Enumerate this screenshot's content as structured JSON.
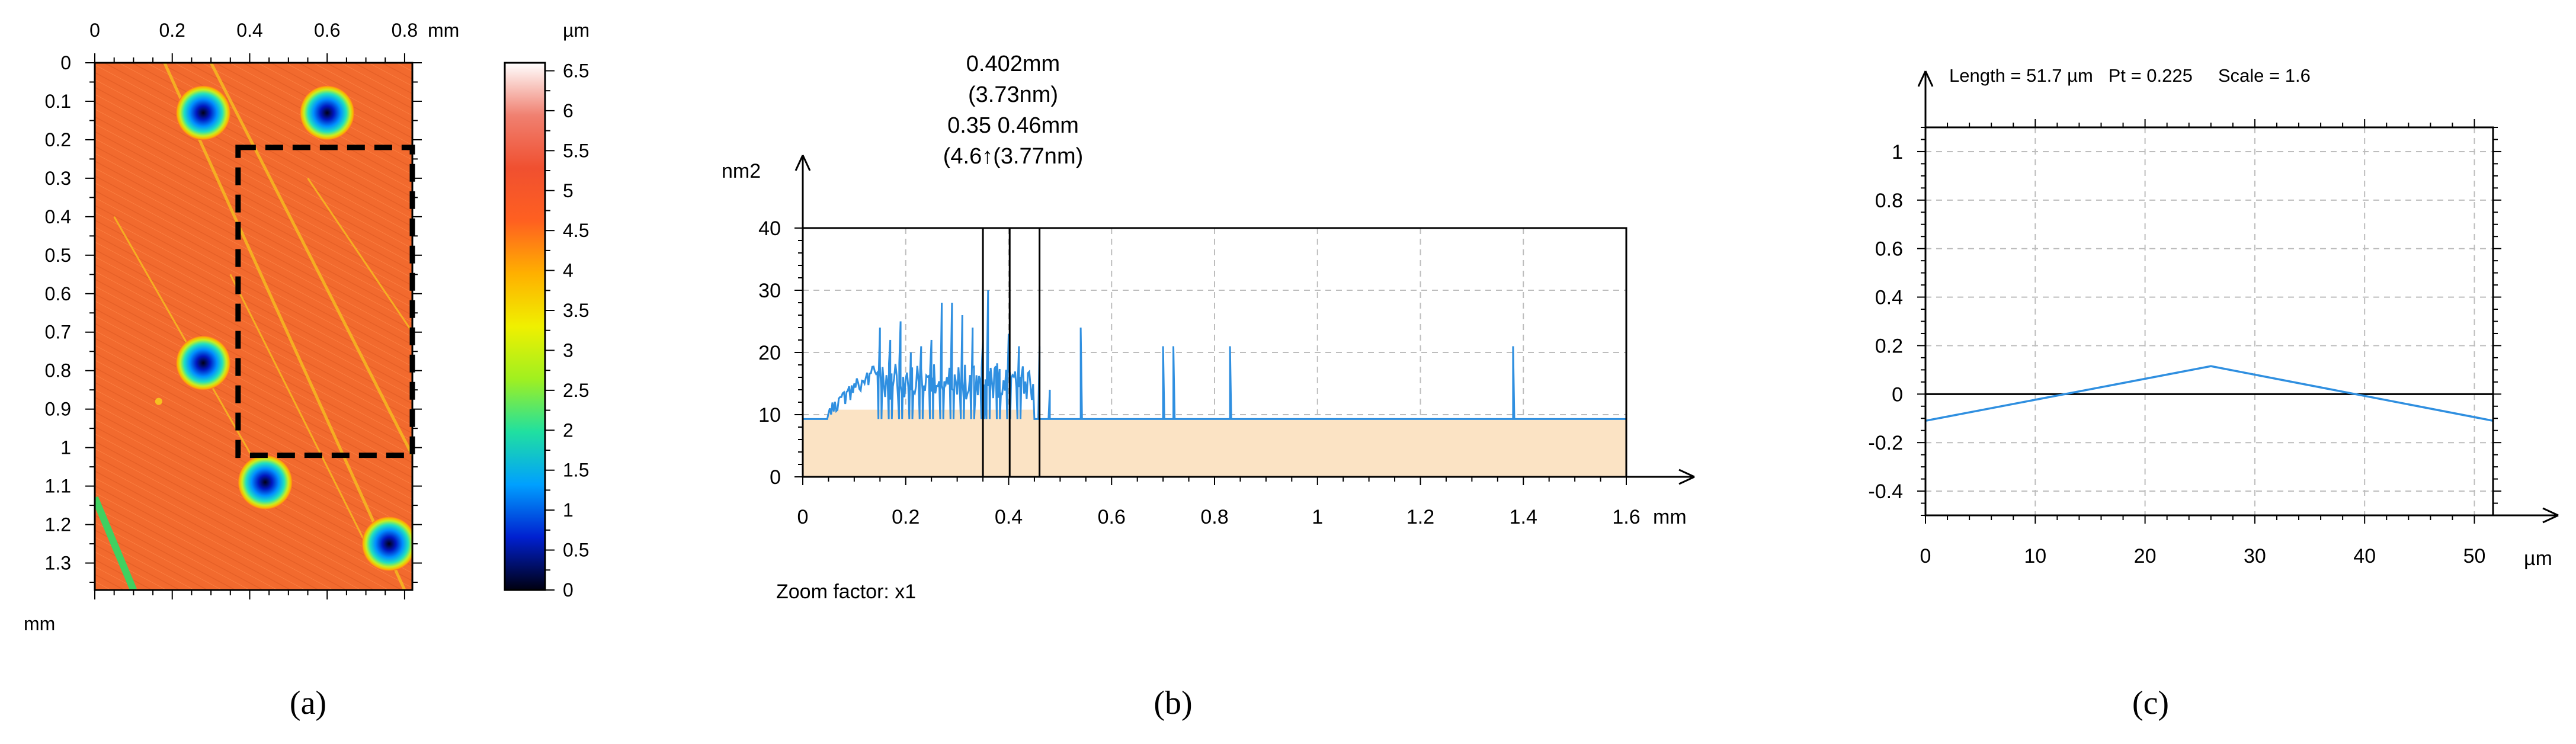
{
  "chart_data": [
    {
      "id": "a",
      "type": "heatmap",
      "caption": "(a)",
      "x_unit": "mm",
      "y_unit": "mm",
      "x_ticks": [
        "0",
        "0.2",
        "0.4",
        "0.6",
        "0.8"
      ],
      "y_ticks": [
        "0",
        "0.1",
        "0.2",
        "0.3",
        "0.4",
        "0.5",
        "0.6",
        "0.7",
        "0.8",
        "0.9",
        "1",
        "1.1",
        "1.2",
        "1.3"
      ],
      "xlim": [
        0,
        0.82
      ],
      "ylim": [
        0,
        1.37
      ],
      "colorbar": {
        "unit": "µm",
        "ticks": [
          "6.5",
          "6",
          "5.5",
          "5",
          "4.5",
          "4",
          "3.5",
          "3",
          "2.5",
          "2",
          "1.5",
          "1",
          "0.5",
          "0"
        ],
        "range": [
          0,
          6.6
        ],
        "colors": [
          "#000010",
          "#0020d0",
          "#00a0ff",
          "#20e0a0",
          "#a0f020",
          "#f0f000",
          "#ffb000",
          "#ff6020",
          "#f05030",
          "#f08070",
          "#ffffff"
        ]
      },
      "base_color": "#f26a2e",
      "scratch_color": "#f6c020",
      "pits": [
        {
          "x": 0.28,
          "y": 0.13
        },
        {
          "x": 0.6,
          "y": 0.13
        },
        {
          "x": 0.28,
          "y": 0.78
        },
        {
          "x": 0.44,
          "y": 1.09
        },
        {
          "x": 0.76,
          "y": 1.25
        }
      ],
      "selection": {
        "x0": 0.37,
        "x1": 0.82,
        "y0": 0.22,
        "y1": 1.02
      }
    },
    {
      "id": "b",
      "type": "area",
      "caption": "(b)",
      "ylabel": "nm2",
      "x_unit": "mm",
      "x_ticks": [
        "0",
        "0.2",
        "0.4",
        "0.6",
        "0.8",
        "1",
        "1.2",
        "1.4",
        "1.6"
      ],
      "y_ticks": [
        "0",
        "10",
        "20",
        "30",
        "40"
      ],
      "xlim": [
        0,
        1.6
      ],
      "ylim": [
        0,
        40
      ],
      "baseline": 9.3,
      "fill_color": "#fbe3c4",
      "line_color": "#2f8fe0",
      "spikes": [
        {
          "x": 0.15,
          "y": 24
        },
        {
          "x": 0.17,
          "y": 22
        },
        {
          "x": 0.19,
          "y": 25
        },
        {
          "x": 0.21,
          "y": 20
        },
        {
          "x": 0.23,
          "y": 21
        },
        {
          "x": 0.25,
          "y": 22
        },
        {
          "x": 0.27,
          "y": 28
        },
        {
          "x": 0.29,
          "y": 28
        },
        {
          "x": 0.31,
          "y": 26
        },
        {
          "x": 0.33,
          "y": 24
        },
        {
          "x": 0.35,
          "y": 22
        },
        {
          "x": 0.36,
          "y": 30
        },
        {
          "x": 0.38,
          "y": 15
        },
        {
          "x": 0.4,
          "y": 23
        },
        {
          "x": 0.42,
          "y": 21
        },
        {
          "x": 0.46,
          "y": 21
        },
        {
          "x": 0.48,
          "y": 14
        },
        {
          "x": 0.54,
          "y": 24
        },
        {
          "x": 0.7,
          "y": 21
        },
        {
          "x": 0.72,
          "y": 21
        },
        {
          "x": 0.83,
          "y": 21
        },
        {
          "x": 1.38,
          "y": 21
        }
      ],
      "markers": [
        0.35,
        0.402,
        0.46
      ],
      "annotations": [
        "0.402mm",
        "(3.73nm)",
        "0.35 0.46mm",
        "(4.6↑(3.77nm)"
      ],
      "note": "Zoom factor: x1"
    },
    {
      "id": "c",
      "type": "line",
      "caption": "(c)",
      "header": "Length = 51.7 µm   Pt = 0.225     Scale = 1.6",
      "x_unit": "µm",
      "x_ticks": [
        "0",
        "10",
        "20",
        "30",
        "40",
        "50"
      ],
      "y_ticks": [
        "1",
        "0.8",
        "0.6",
        "0.4",
        "0.2",
        "0",
        "-0.2",
        "-0.4"
      ],
      "xlim": [
        0,
        51.7
      ],
      "ylim": [
        -0.5,
        1.1
      ],
      "line_color": "#2f8fe0",
      "x": [
        0,
        26,
        51.7
      ],
      "y": [
        -0.11,
        0.115,
        -0.11
      ]
    }
  ]
}
